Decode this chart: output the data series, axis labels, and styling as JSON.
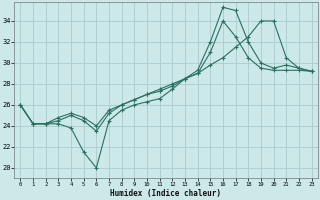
{
  "xlabel": "Humidex (Indice chaleur)",
  "background_color": "#cce8e8",
  "grid_color": "#aacccc",
  "line_color": "#2a7060",
  "xlim": [
    -0.5,
    23.5
  ],
  "ylim": [
    19.0,
    35.8
  ],
  "xticks": [
    0,
    1,
    2,
    3,
    4,
    5,
    6,
    7,
    8,
    9,
    10,
    11,
    12,
    13,
    14,
    15,
    16,
    17,
    18,
    19,
    20,
    21,
    22,
    23
  ],
  "yticks": [
    20,
    22,
    24,
    26,
    28,
    30,
    32,
    34
  ],
  "line1_x": [
    0,
    1,
    2,
    3,
    4,
    5,
    6,
    7,
    8,
    9,
    10,
    11,
    12,
    13,
    14,
    15,
    16,
    17,
    18,
    19,
    20,
    21,
    22,
    23
  ],
  "line1_y": [
    26.0,
    24.2,
    24.2,
    24.2,
    23.8,
    21.5,
    20.0,
    24.5,
    25.5,
    26.0,
    26.3,
    26.6,
    27.5,
    28.5,
    29.3,
    32.0,
    35.3,
    35.0,
    32.0,
    30.0,
    29.5,
    29.8,
    29.5,
    29.2
  ],
  "line2_x": [
    0,
    1,
    2,
    3,
    4,
    5,
    6,
    7,
    8,
    9,
    10,
    11,
    12,
    13,
    14,
    15,
    16,
    17,
    18,
    19,
    20,
    21,
    22,
    23
  ],
  "line2_y": [
    26.0,
    24.2,
    24.2,
    24.5,
    25.0,
    24.5,
    23.5,
    25.2,
    26.0,
    26.5,
    27.0,
    27.3,
    27.8,
    28.5,
    29.0,
    31.0,
    34.0,
    32.5,
    30.5,
    29.5,
    29.3,
    29.3,
    29.3,
    29.2
  ],
  "line3_x": [
    0,
    1,
    2,
    3,
    4,
    5,
    6,
    7,
    8,
    9,
    10,
    11,
    12,
    13,
    14,
    15,
    16,
    17,
    18,
    19,
    20,
    21,
    22,
    23
  ],
  "line3_y": [
    26.0,
    24.2,
    24.2,
    24.8,
    25.2,
    24.8,
    24.0,
    25.5,
    26.0,
    26.5,
    27.0,
    27.5,
    28.0,
    28.5,
    29.0,
    29.8,
    30.5,
    31.5,
    32.5,
    34.0,
    34.0,
    30.5,
    29.5,
    29.2
  ]
}
